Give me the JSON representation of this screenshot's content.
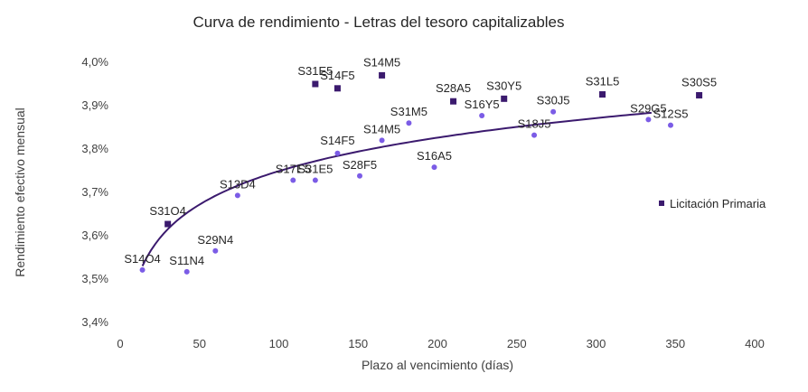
{
  "chart_data": {
    "type": "scatter",
    "title": "Curva de rendimiento  - Letras del tesoro capitalizables",
    "xlabel": "Plazo al vencimiento (días)",
    "ylabel": "Rendimiento efectivo mensual",
    "xlim": [
      0,
      400
    ],
    "ylim": [
      3.4,
      4.0
    ],
    "x_ticks": [
      0,
      50,
      100,
      150,
      200,
      250,
      300,
      350,
      400
    ],
    "x_tick_labels": [
      "0",
      "50",
      "100",
      "150",
      "200",
      "250",
      "300",
      "350",
      "400"
    ],
    "y_ticks": [
      3.4,
      3.5,
      3.6,
      3.7,
      3.8,
      3.9,
      4.0
    ],
    "y_tick_labels": [
      "3,4%",
      "3,5%",
      "3,6%",
      "3,7%",
      "3,8%",
      "3,9%",
      "4,0%"
    ],
    "grid": false,
    "legend_position": "right",
    "series": [
      {
        "name": "Licitación Primaria",
        "marker": "square",
        "color": "#3b1a6e",
        "points": [
          {
            "label": "S31O4",
            "x": 30,
            "y": 3.627
          },
          {
            "label": "S31E5",
            "x": 123,
            "y": 3.95
          },
          {
            "label": "S14F5",
            "x": 137,
            "y": 3.94
          },
          {
            "label": "S14M5",
            "x": 165,
            "y": 3.97
          },
          {
            "label": "S28A5",
            "x": 210,
            "y": 3.91
          },
          {
            "label": "S30Y5",
            "x": 242,
            "y": 3.916
          },
          {
            "label": "S31L5",
            "x": 304,
            "y": 3.926
          },
          {
            "label": "S30S5",
            "x": 365,
            "y": 3.924
          }
        ]
      },
      {
        "marker": "circle",
        "color": "#7b5ce6",
        "points": [
          {
            "label": "S14O4",
            "x": 14,
            "y": 3.521
          },
          {
            "label": "S11N4",
            "x": 42,
            "y": 3.517
          },
          {
            "label": "S29N4",
            "x": 60,
            "y": 3.565
          },
          {
            "label": "S13D4",
            "x": 74,
            "y": 3.693
          },
          {
            "label": "S17E5",
            "x": 109,
            "y": 3.728
          },
          {
            "label": "S31E5",
            "x": 123,
            "y": 3.728
          },
          {
            "label": "S14F5",
            "x": 137,
            "y": 3.79
          },
          {
            "label": "S28F5",
            "x": 151,
            "y": 3.738
          },
          {
            "label": "S14M5",
            "x": 165,
            "y": 3.82
          },
          {
            "label": "S31M5",
            "x": 182,
            "y": 3.86
          },
          {
            "label": "S16A5",
            "x": 198,
            "y": 3.758
          },
          {
            "label": "S16Y5",
            "x": 228,
            "y": 3.877
          },
          {
            "label": "S18J5",
            "x": 261,
            "y": 3.832
          },
          {
            "label": "S30J5",
            "x": 273,
            "y": 3.886
          },
          {
            "label": "S29G5",
            "x": 333,
            "y": 3.868
          },
          {
            "label": "S12S5",
            "x": 347,
            "y": 3.855
          }
        ]
      }
    ],
    "trendline": {
      "type": "logarithmic",
      "color": "#3b1a6e",
      "x_range": [
        14,
        335
      ],
      "a": 3.2365,
      "b": 0.1113
    },
    "legend": [
      "Licitación Primaria"
    ]
  }
}
